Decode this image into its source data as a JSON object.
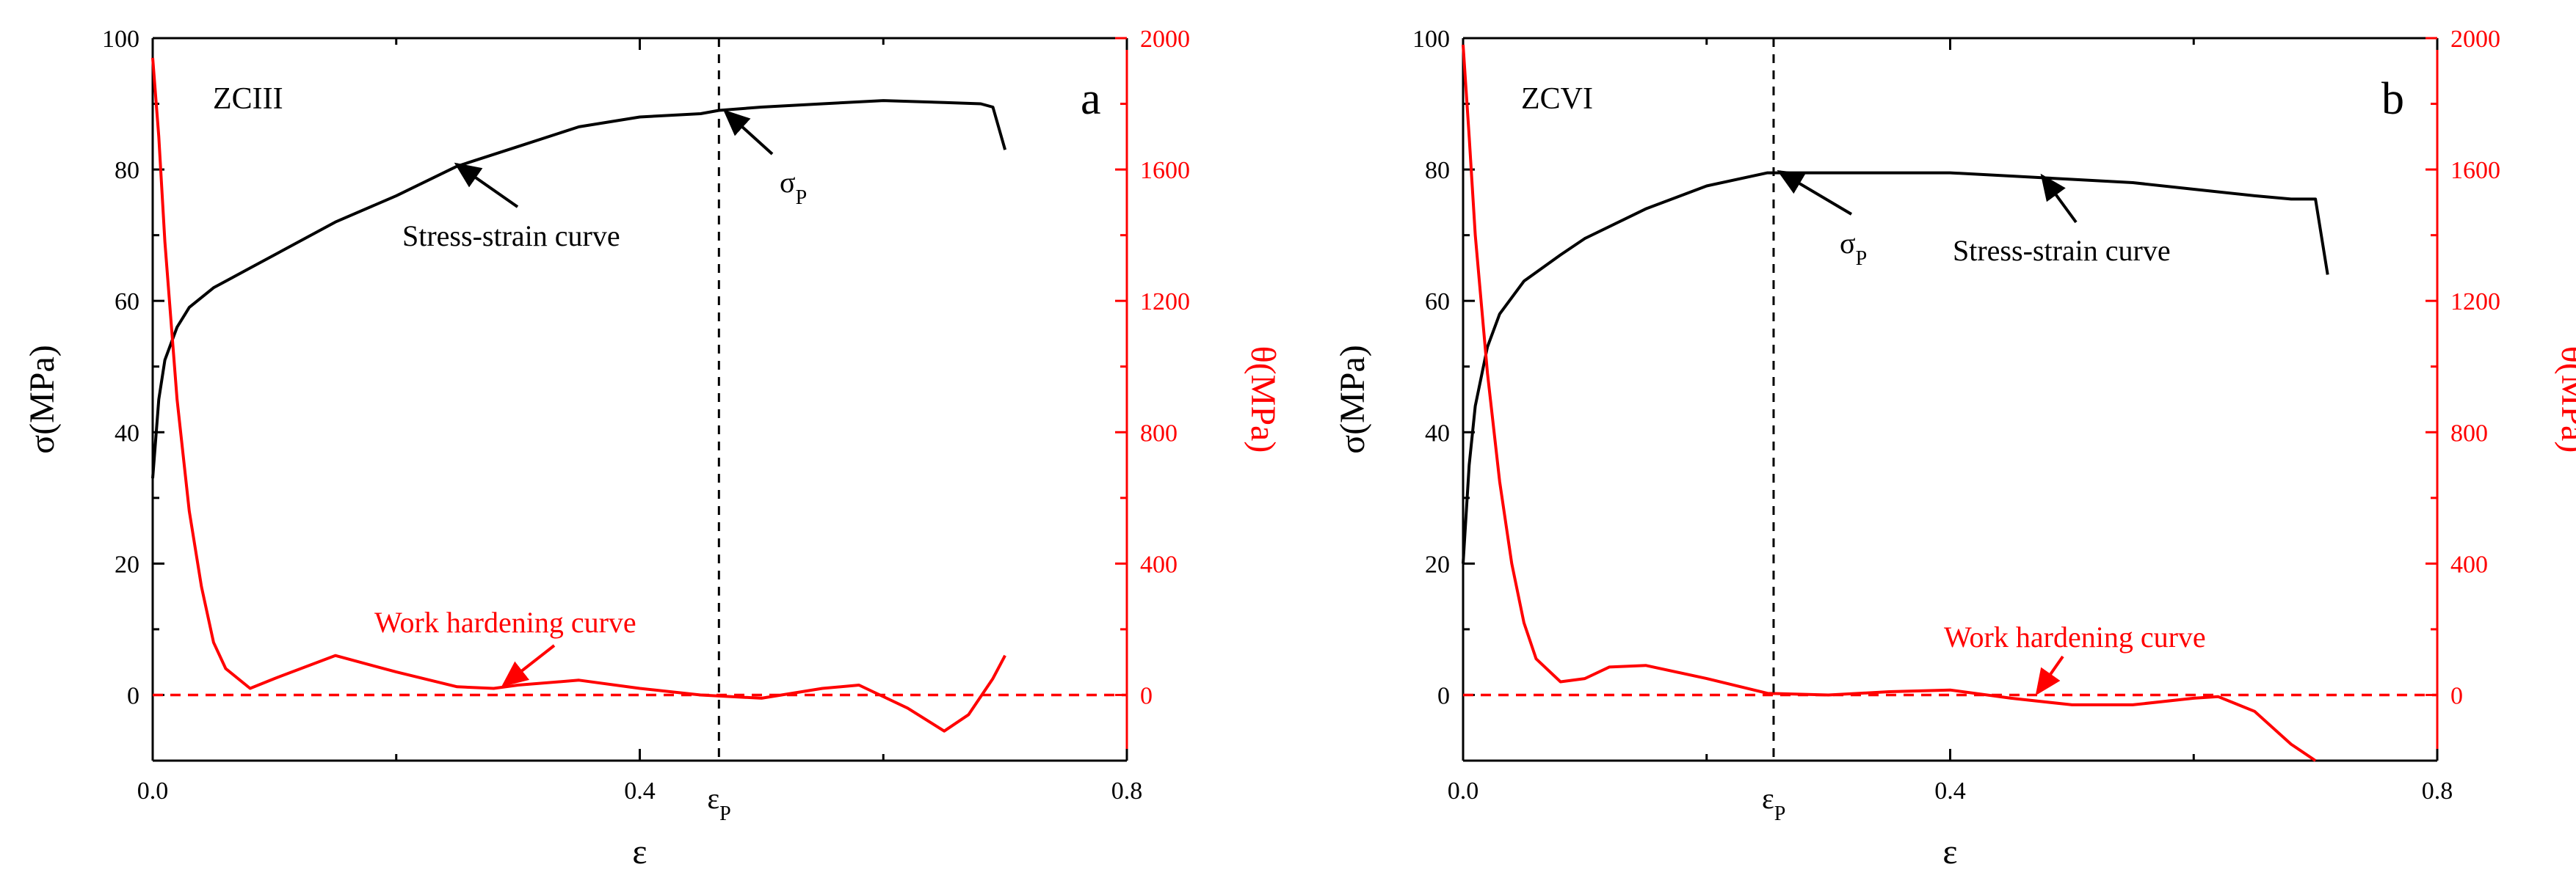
{
  "chart_data": [
    {
      "type": "line",
      "panel_label": "a",
      "material": "ZCIII",
      "xlabel": "ε",
      "ylabel_left": "σ(MPa)",
      "ylabel_right": "θ(MPa)",
      "xlim": [
        0,
        0.8
      ],
      "ylim_left": [
        -10,
        100
      ],
      "ylim_right": [
        -200,
        2000
      ],
      "x_ticks": [
        "0.0",
        "0.4",
        "0.8"
      ],
      "y_ticks_left": [
        "0",
        "20",
        "40",
        "60",
        "80",
        "100"
      ],
      "y_ticks_right": [
        "0",
        "400",
        "800",
        "1200",
        "1600",
        "2000"
      ],
      "peak_strain": 0.465,
      "peak_strain_label": "ε",
      "peak_stress_label": "σ",
      "subscript": "P",
      "stress_label": "Stress-strain curve",
      "hardening_label": "Work hardening curve",
      "series": [
        {
          "name": "Stress-strain curve",
          "axis": "left",
          "color": "#000000",
          "x": [
            0.0,
            0.005,
            0.01,
            0.02,
            0.03,
            0.05,
            0.08,
            0.1,
            0.15,
            0.2,
            0.25,
            0.3,
            0.35,
            0.4,
            0.45,
            0.465,
            0.5,
            0.55,
            0.6,
            0.65,
            0.68,
            0.69,
            0.7
          ],
          "y": [
            33,
            45,
            51,
            56,
            59,
            62,
            65,
            67,
            72,
            76,
            80.5,
            83.5,
            86.5,
            88,
            88.5,
            89,
            89.5,
            90,
            90.5,
            90.2,
            90,
            89.5,
            83
          ]
        },
        {
          "name": "Work hardening curve",
          "axis": "right",
          "color": "#ff0000",
          "x": [
            0.0,
            0.005,
            0.01,
            0.02,
            0.03,
            0.04,
            0.05,
            0.06,
            0.08,
            0.1,
            0.15,
            0.2,
            0.25,
            0.28,
            0.3,
            0.35,
            0.4,
            0.45,
            0.5,
            0.55,
            0.58,
            0.62,
            0.65,
            0.67,
            0.69,
            0.7
          ],
          "y": [
            1940,
            1700,
            1380,
            900,
            560,
            330,
            160,
            80,
            20,
            50,
            120,
            70,
            25,
            20,
            30,
            45,
            20,
            0,
            -10,
            20,
            30,
            -40,
            -110,
            -60,
            50,
            120
          ]
        },
        {
          "name": "Zero line",
          "axis": "right",
          "color": "#ff0000",
          "dashed": true,
          "x": [
            0.0,
            0.8
          ],
          "y": [
            0,
            0
          ]
        }
      ]
    },
    {
      "type": "line",
      "panel_label": "b",
      "material": "ZCVI",
      "xlabel": "ε",
      "ylabel_left": "σ(MPa)",
      "ylabel_right": "θ(MPa)",
      "xlim": [
        0,
        0.8
      ],
      "ylim_left": [
        -10,
        100
      ],
      "ylim_right": [
        -200,
        2000
      ],
      "x_ticks": [
        "0.0",
        "0.4",
        "0.8"
      ],
      "y_ticks_left": [
        "0",
        "20",
        "40",
        "60",
        "80",
        "100"
      ],
      "y_ticks_right": [
        "0",
        "400",
        "800",
        "1200",
        "1600",
        "2000"
      ],
      "peak_strain": 0.255,
      "peak_strain_label": "ε",
      "peak_stress_label": "σ",
      "subscript": "P",
      "stress_label": "Stress-strain curve",
      "hardening_label": "Work hardening curve",
      "series": [
        {
          "name": "Stress-strain curve",
          "axis": "left",
          "color": "#000000",
          "x": [
            0.0,
            0.005,
            0.01,
            0.02,
            0.03,
            0.05,
            0.08,
            0.1,
            0.15,
            0.2,
            0.25,
            0.3,
            0.35,
            0.4,
            0.45,
            0.5,
            0.55,
            0.6,
            0.65,
            0.68,
            0.7,
            0.71
          ],
          "y": [
            20,
            35,
            44,
            53,
            58,
            63,
            67,
            69.5,
            74,
            77.5,
            79.5,
            79.5,
            79.5,
            79.5,
            79,
            78.5,
            78,
            77,
            76,
            75.5,
            75.5,
            64
          ]
        },
        {
          "name": "Work hardening curve",
          "axis": "right",
          "color": "#ff0000",
          "x": [
            0.0,
            0.005,
            0.01,
            0.02,
            0.03,
            0.04,
            0.05,
            0.06,
            0.08,
            0.1,
            0.12,
            0.15,
            0.2,
            0.25,
            0.3,
            0.35,
            0.4,
            0.45,
            0.5,
            0.55,
            0.6,
            0.62,
            0.65,
            0.68,
            0.7
          ],
          "y": [
            1980,
            1700,
            1400,
            980,
            650,
            400,
            220,
            110,
            40,
            50,
            85,
            90,
            50,
            5,
            0,
            10,
            15,
            -10,
            -30,
            -30,
            -10,
            -5,
            -50,
            -150,
            -200
          ]
        },
        {
          "name": "Zero line",
          "axis": "right",
          "color": "#ff0000",
          "dashed": true,
          "x": [
            0.0,
            0.8
          ],
          "y": [
            0,
            0
          ]
        }
      ]
    }
  ]
}
